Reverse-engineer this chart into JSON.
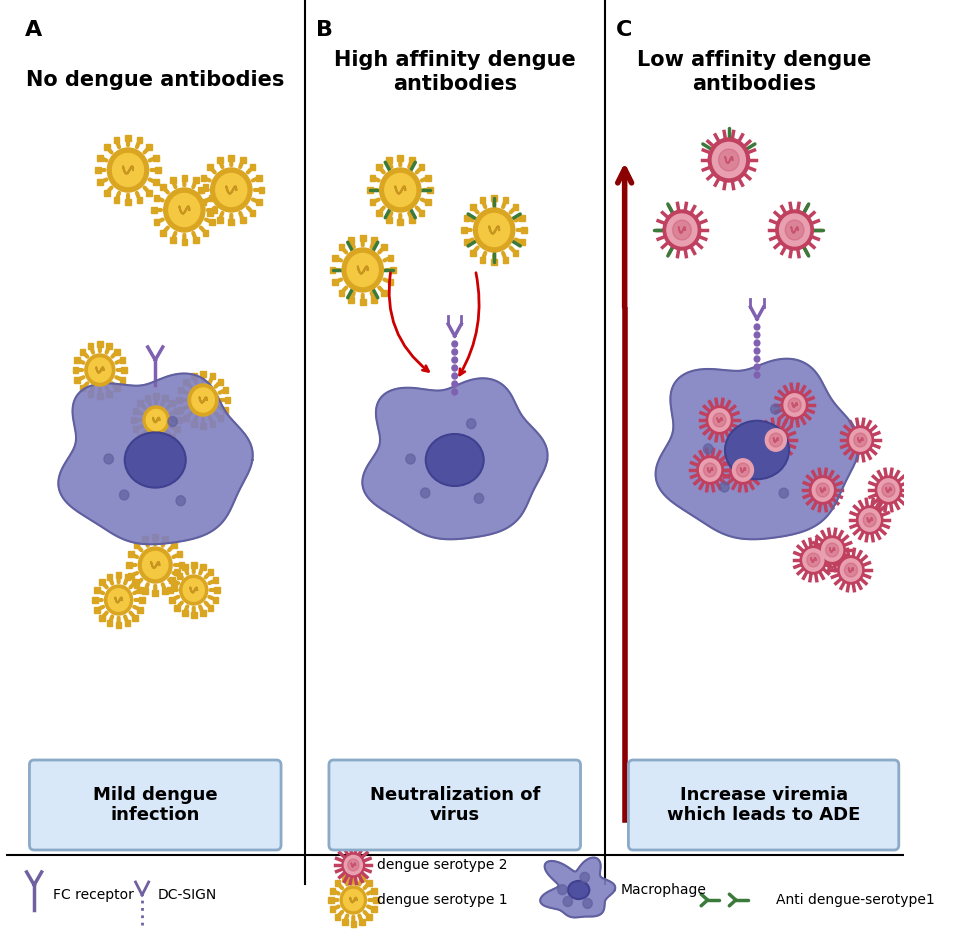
{
  "bg_color": "#ffffff",
  "panel_titles": [
    "A",
    "B",
    "C"
  ],
  "panel_headers": [
    "No dengue antibodies",
    "High affinity dengue\nantibodies",
    "Low affinity dengue\nantibodies"
  ],
  "panel_footers": [
    "Mild dengue\ninfection",
    "Neutralization of\nvirus",
    "Increase viremia\nwhich leads to ADE"
  ],
  "virus1_color_outer": "#DAA520",
  "virus1_color_inner": "#F5C842",
  "virus1_spike_color": "#DAA520",
  "virus1_dna_color": "#C8961E",
  "virus2_color_outer": "#C04060",
  "virus2_color_inner": "#E8A0B0",
  "virus2_spike_color": "#C04060",
  "cell_color": "#8080C0",
  "cell_border_color": "#6060A0",
  "cell_nucleus_color": "#5050A0",
  "cell_nucleus_border": "#404090",
  "receptor_color": "#8060B0",
  "antibody_color": "#3A7A3A",
  "antibody_color2": "#2A6A2A",
  "footer_box_color": "#D8E8F8",
  "footer_box_border": "#8AAAC8",
  "arrow_color": "#8B0000",
  "divider_color": "#000000",
  "legend_receptor_color": "#7060A0",
  "legend_antibody_color": "#3A7A3A"
}
